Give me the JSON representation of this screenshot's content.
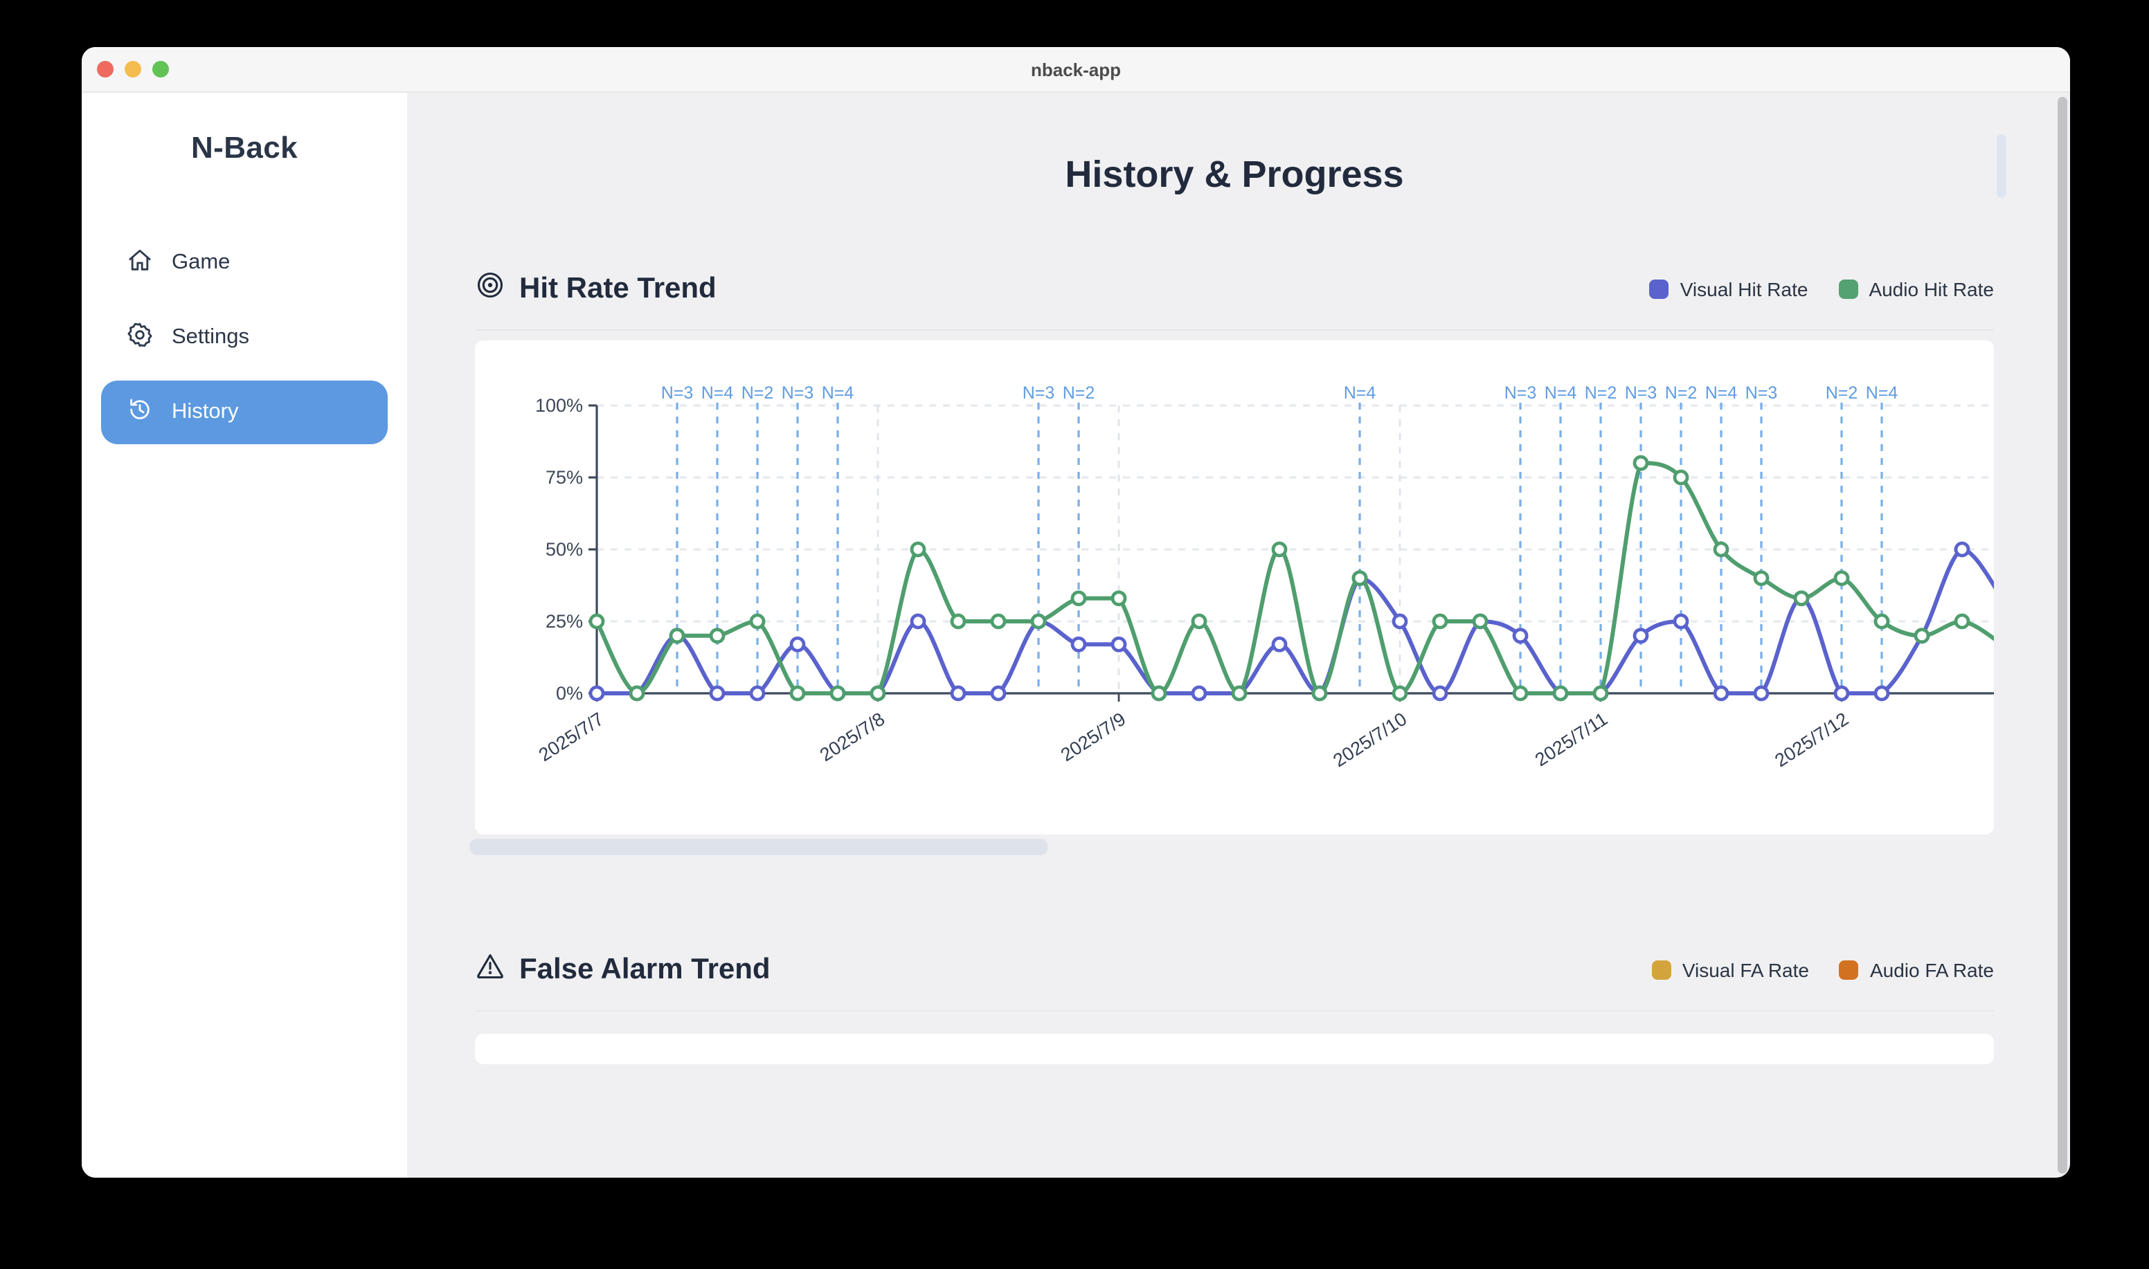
{
  "window": {
    "title": "nback-app",
    "traffic_lights": {
      "close": "#ee6a5f",
      "minimize": "#f5bd4f",
      "zoom": "#61c354"
    }
  },
  "sidebar": {
    "app_title": "N-Back",
    "items": [
      {
        "label": "Game",
        "active": false
      },
      {
        "label": "Settings",
        "active": false
      },
      {
        "label": "History",
        "active": true
      }
    ],
    "active_bg": "#5c99e0"
  },
  "main": {
    "title": "History & Progress",
    "sections": [
      {
        "title": "Hit Rate Trend",
        "icon": "target-icon",
        "legend": [
          {
            "label": "Visual Hit Rate",
            "color": "#5a62cd"
          },
          {
            "label": "Audio Hit Rate",
            "color": "#54a171"
          }
        ]
      },
      {
        "title": "False Alarm Trend",
        "icon": "warning-icon",
        "legend": [
          {
            "label": "Visual FA Rate",
            "color": "#d4a43c"
          },
          {
            "label": "Audio FA Rate",
            "color": "#d2711f"
          }
        ]
      }
    ]
  },
  "chart_data": {
    "type": "line",
    "title": "Hit Rate Trend",
    "x_unit": "session (chronological, grouped by date)",
    "n_points": 36,
    "ylim": [
      0,
      100
    ],
    "y_ticks": [
      "0%",
      "25%",
      "50%",
      "75%",
      "100%"
    ],
    "grid": "dashed horizontal gridlines at 25% steps",
    "legend_position": "top-right",
    "clipped_right": true,
    "series": [
      {
        "name": "Visual Hit Rate",
        "color": "#5a62cd",
        "values": [
          0,
          0,
          20,
          0,
          0,
          17,
          0,
          0,
          25,
          0,
          0,
          25,
          17,
          17,
          0,
          0,
          0,
          17,
          0,
          40,
          25,
          0,
          25,
          20,
          0,
          0,
          20,
          25,
          0,
          0,
          33,
          0,
          0,
          20,
          50,
          33
        ]
      },
      {
        "name": "Audio Hit Rate",
        "color": "#4f9e6e",
        "values": [
          25,
          0,
          20,
          20,
          25,
          0,
          0,
          0,
          50,
          25,
          25,
          25,
          33,
          33,
          0,
          25,
          0,
          50,
          0,
          40,
          0,
          25,
          25,
          0,
          0,
          0,
          80,
          75,
          50,
          40,
          33,
          40,
          25,
          20,
          25,
          17
        ]
      }
    ],
    "session_markers": [
      {
        "index": 2,
        "label": "N=3"
      },
      {
        "index": 3,
        "label": "N=4"
      },
      {
        "index": 4,
        "label": "N=2"
      },
      {
        "index": 5,
        "label": "N=3"
      },
      {
        "index": 6,
        "label": "N=4"
      },
      {
        "index": 11,
        "label": "N=3"
      },
      {
        "index": 12,
        "label": "N=2"
      },
      {
        "index": 19,
        "label": "N=4"
      },
      {
        "index": 23,
        "label": "N=3"
      },
      {
        "index": 24,
        "label": "N=4"
      },
      {
        "index": 25,
        "label": "N=2"
      },
      {
        "index": 26,
        "label": "N=3"
      },
      {
        "index": 27,
        "label": "N=2"
      },
      {
        "index": 28,
        "label": "N=4"
      },
      {
        "index": 29,
        "label": "N=3"
      },
      {
        "index": 31,
        "label": "N=2"
      },
      {
        "index": 32,
        "label": "N=4"
      }
    ],
    "date_ticks": [
      {
        "index": 0,
        "label": "2025/7/7"
      },
      {
        "index": 7,
        "label": "2025/7/8"
      },
      {
        "index": 13,
        "label": "2025/7/9"
      },
      {
        "index": 20,
        "label": "2025/7/10"
      },
      {
        "index": 25,
        "label": "2025/7/11"
      },
      {
        "index": 31,
        "label": "2025/7/12"
      }
    ],
    "colors": {
      "session_line": "#79aee8",
      "session_label": "#5f9ce2",
      "gridline": "#e5e9ef",
      "date_gridline": "#dfe3e9",
      "axis": "#3f4a5c",
      "tick_label": "#3c4657"
    }
  }
}
